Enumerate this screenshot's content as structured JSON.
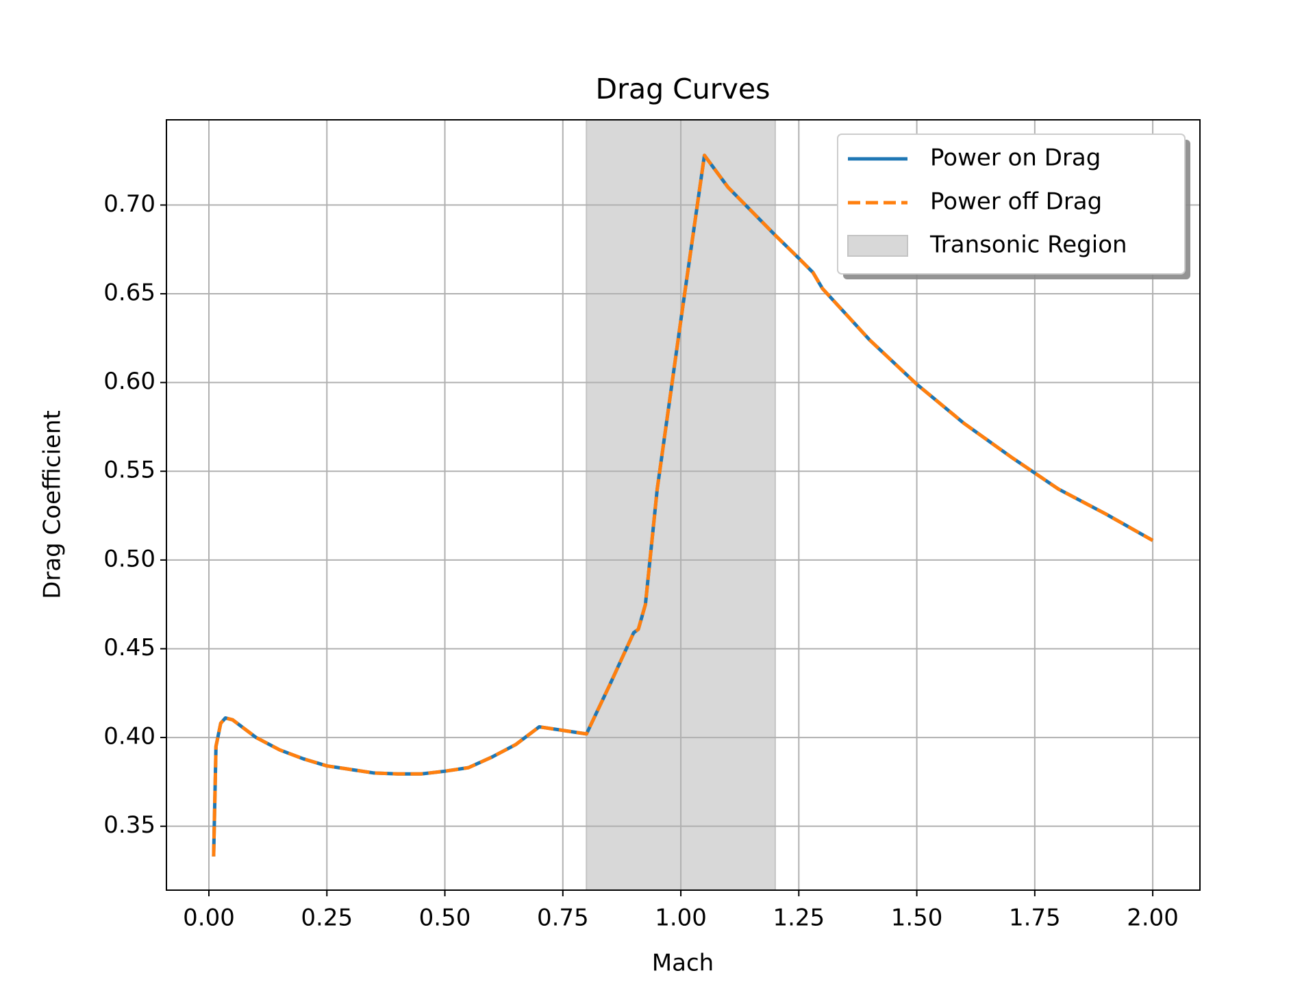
{
  "chart_data": {
    "type": "line",
    "title": "Drag Curves",
    "xlabel": "Mach",
    "ylabel": "Drag Coefficient",
    "x": [
      0.01,
      0.015,
      0.025,
      0.035,
      0.05,
      0.1,
      0.15,
      0.2,
      0.25,
      0.3,
      0.35,
      0.4,
      0.45,
      0.5,
      0.55,
      0.6,
      0.65,
      0.7,
      0.8,
      0.85,
      0.9,
      0.91,
      0.925,
      0.95,
      1.0,
      1.05,
      1.1,
      1.2,
      1.25,
      1.28,
      1.3,
      1.4,
      1.5,
      1.6,
      1.7,
      1.75,
      1.8,
      1.9,
      2.0
    ],
    "series": [
      {
        "name": "Power on Drag",
        "color": "#1f77b4",
        "dash": false,
        "values": [
          0.333,
          0.395,
          0.408,
          0.411,
          0.41,
          0.4,
          0.393,
          0.388,
          0.384,
          0.382,
          0.38,
          0.3795,
          0.3795,
          0.381,
          0.383,
          0.389,
          0.396,
          0.406,
          0.402,
          0.43,
          0.459,
          0.461,
          0.475,
          0.54,
          0.635,
          0.728,
          0.71,
          0.683,
          0.67,
          0.662,
          0.653,
          0.624,
          0.599,
          0.577,
          0.558,
          0.549,
          0.54,
          0.526,
          0.511
        ]
      },
      {
        "name": "Power off Drag",
        "color": "#ff7f0e",
        "dash": true,
        "values": [
          0.333,
          0.395,
          0.408,
          0.411,
          0.41,
          0.4,
          0.393,
          0.388,
          0.384,
          0.382,
          0.38,
          0.3795,
          0.3795,
          0.381,
          0.383,
          0.389,
          0.396,
          0.406,
          0.402,
          0.43,
          0.459,
          0.461,
          0.475,
          0.54,
          0.635,
          0.728,
          0.71,
          0.683,
          0.67,
          0.662,
          0.653,
          0.624,
          0.599,
          0.577,
          0.558,
          0.549,
          0.54,
          0.526,
          0.511
        ]
      }
    ],
    "span": {
      "name": "Transonic Region",
      "x0": 0.8,
      "x1": 1.2,
      "color": "#d8d8d8"
    },
    "xlim": [
      -0.09,
      2.1
    ],
    "ylim": [
      0.314,
      0.748
    ],
    "xticks": [
      {
        "value": 0,
        "label": "0.00"
      },
      {
        "value": 0.25,
        "label": "0.25"
      },
      {
        "value": 0.5,
        "label": "0.50"
      },
      {
        "value": 0.75,
        "label": "0.75"
      },
      {
        "value": 1,
        "label": "1.00"
      },
      {
        "value": 1.25,
        "label": "1.25"
      },
      {
        "value": 1.5,
        "label": "1.50"
      },
      {
        "value": 1.75,
        "label": "1.75"
      },
      {
        "value": 2,
        "label": "2.00"
      }
    ],
    "yticks": [
      {
        "value": 0.35,
        "label": "0.35"
      },
      {
        "value": 0.4,
        "label": "0.40"
      },
      {
        "value": 0.45,
        "label": "0.45"
      },
      {
        "value": 0.5,
        "label": "0.50"
      },
      {
        "value": 0.55,
        "label": "0.55"
      },
      {
        "value": 0.6,
        "label": "0.60"
      },
      {
        "value": 0.65,
        "label": "0.65"
      },
      {
        "value": 0.7,
        "label": "0.70"
      }
    ],
    "grid": true,
    "legend": "upper right"
  }
}
